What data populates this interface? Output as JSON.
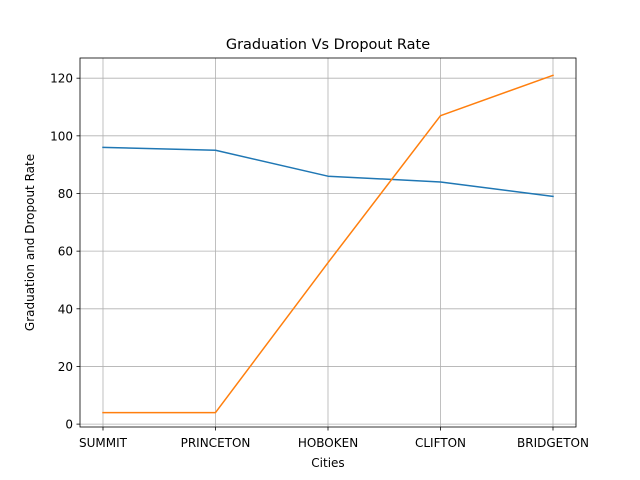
{
  "chart_data": {
    "type": "line",
    "title": "Graduation Vs Dropout Rate",
    "xlabel": "Cities",
    "ylabel": "Graduation and Dropout Rate",
    "categories": [
      "SUMMIT",
      "PRINCETON",
      "HOBOKEN",
      "CLIFTON",
      "BRIDGETON"
    ],
    "series": [
      {
        "values": [
          96,
          95,
          86,
          84,
          79
        ],
        "color": "#1f77b4"
      },
      {
        "values": [
          4,
          4,
          56,
          107,
          121
        ],
        "color": "#ff7f0e"
      }
    ],
    "yticks": [
      0,
      20,
      40,
      60,
      80,
      100,
      120
    ],
    "ylim": [
      -1,
      127
    ],
    "grid": true
  }
}
